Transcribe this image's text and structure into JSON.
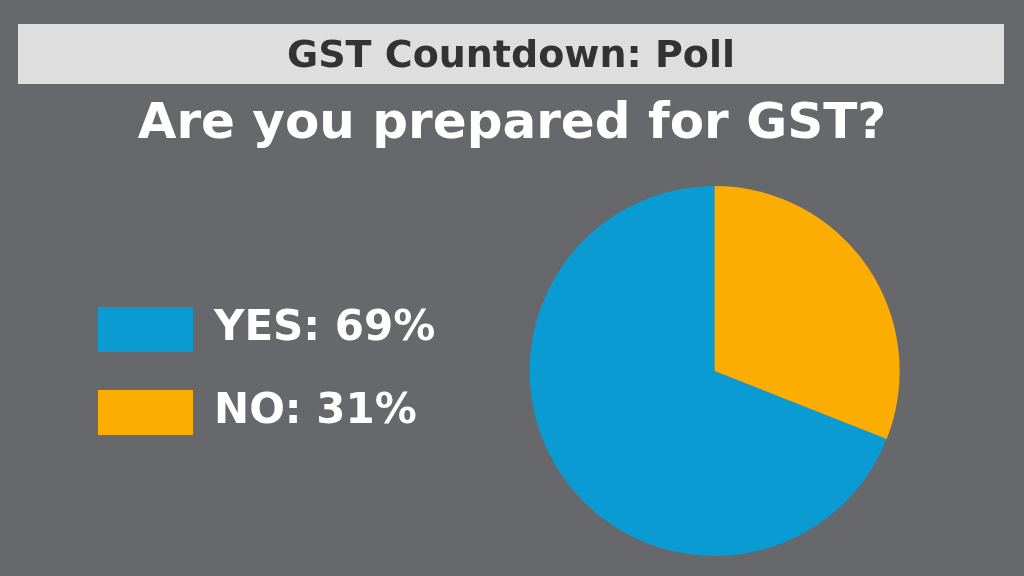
{
  "chart_data": {
    "type": "pie",
    "title": "GST Countdown: Poll",
    "subtitle": "Are you prepared for GST?",
    "categories": [
      "YES",
      "NO"
    ],
    "values": [
      69,
      31
    ],
    "value_labels": [
      "69%",
      "31%"
    ],
    "colors": [
      "#0a9bd3",
      "#fbad02"
    ],
    "legend": "left"
  }
}
